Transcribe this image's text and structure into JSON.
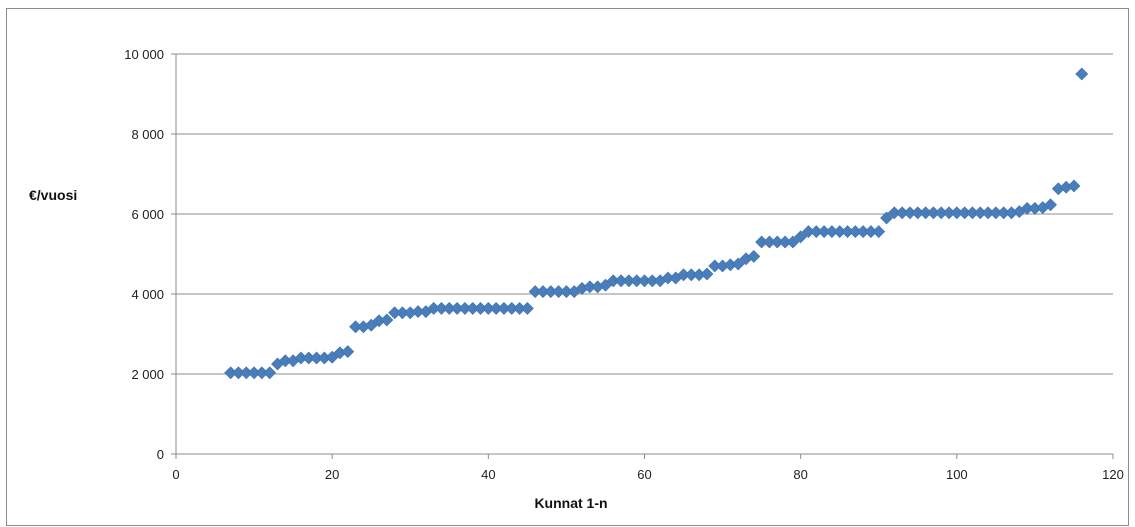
{
  "chart_data": {
    "type": "scatter",
    "xlabel": "Kunnat 1-n",
    "ylabel": "€/vuosi",
    "xlim": [
      0,
      120
    ],
    "ylim": [
      0,
      10000
    ],
    "x_ticks": [
      0,
      20,
      40,
      60,
      80,
      100,
      120
    ],
    "y_ticks": [
      0,
      2000,
      4000,
      6000,
      8000,
      10000
    ],
    "x_tick_labels": [
      "0",
      "20",
      "40",
      "60",
      "80",
      "100",
      "120"
    ],
    "y_tick_labels": [
      "0",
      "2 000",
      "4 000",
      "6 000",
      "8 000",
      "10 000"
    ],
    "grid": "horizontal",
    "legend": "none",
    "marker": "diamond",
    "color": "#4a7ebb",
    "series": [
      {
        "x": [
          7,
          8,
          9,
          10,
          11,
          12,
          13,
          14,
          15,
          16,
          17,
          18,
          19,
          20,
          21,
          22,
          23,
          24,
          25,
          26,
          27,
          28,
          29,
          30,
          31,
          32,
          33,
          34,
          35,
          36,
          37,
          38,
          39,
          40,
          41,
          42,
          43,
          44,
          45,
          46,
          47,
          48,
          49,
          50,
          51,
          52,
          53,
          54,
          55,
          56,
          57,
          58,
          59,
          60,
          61,
          62,
          63,
          64,
          65,
          66,
          67,
          68,
          69,
          70,
          71,
          72,
          73,
          74,
          75,
          76,
          77,
          78,
          79,
          80,
          81,
          82,
          83,
          84,
          85,
          86,
          87,
          88,
          89,
          90,
          91,
          92,
          93,
          94,
          95,
          96,
          97,
          98,
          99,
          100,
          101,
          102,
          103,
          104,
          105,
          106,
          107,
          108,
          109,
          110,
          111,
          112,
          113,
          114,
          115,
          116
        ],
        "y": [
          2030,
          2030,
          2030,
          2030,
          2030,
          2030,
          2250,
          2330,
          2330,
          2400,
          2400,
          2400,
          2400,
          2420,
          2530,
          2560,
          3180,
          3180,
          3220,
          3330,
          3350,
          3530,
          3530,
          3530,
          3560,
          3560,
          3640,
          3640,
          3640,
          3640,
          3640,
          3640,
          3640,
          3640,
          3640,
          3640,
          3640,
          3640,
          3640,
          4060,
          4060,
          4060,
          4060,
          4060,
          4060,
          4140,
          4180,
          4180,
          4220,
          4330,
          4330,
          4330,
          4330,
          4330,
          4330,
          4330,
          4400,
          4400,
          4480,
          4480,
          4480,
          4500,
          4700,
          4700,
          4730,
          4750,
          4880,
          4940,
          5300,
          5300,
          5300,
          5300,
          5300,
          5430,
          5560,
          5560,
          5560,
          5560,
          5560,
          5560,
          5560,
          5560,
          5560,
          5560,
          5900,
          6030,
          6030,
          6030,
          6030,
          6030,
          6030,
          6030,
          6030,
          6030,
          6030,
          6030,
          6030,
          6030,
          6030,
          6030,
          6030,
          6060,
          6140,
          6140,
          6160,
          6230,
          6630,
          6670,
          6700,
          9500
        ]
      }
    ]
  }
}
